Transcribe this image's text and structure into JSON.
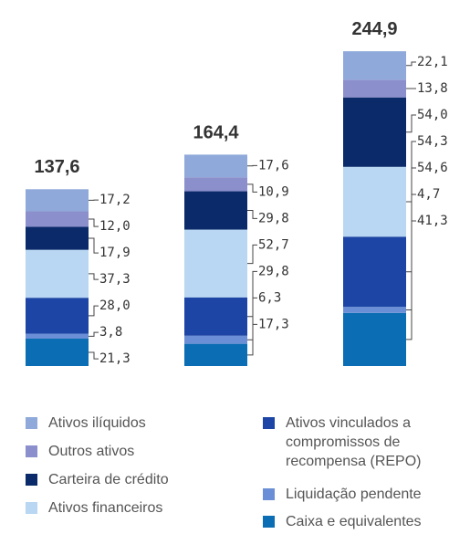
{
  "chart_data": {
    "type": "stacked_bar",
    "totals": [
      137.6,
      164.4,
      244.9
    ],
    "total_labels": [
      "137,6",
      "164,4",
      "244,9"
    ],
    "ylim": [
      0,
      244.9
    ],
    "series": [
      {
        "name": "Ativos ilíquidos",
        "color": "#8fa9da",
        "values": [
          17.2,
          17.6,
          22.1
        ],
        "value_labels": [
          "17,2",
          "17,6",
          "22,1"
        ]
      },
      {
        "name": "Outros ativos",
        "color": "#8b8fcc",
        "values": [
          12.0,
          10.9,
          13.8
        ],
        "value_labels": [
          "12,0",
          "10,9",
          "13,8"
        ]
      },
      {
        "name": "Carteira de crédito",
        "color": "#0b2a69",
        "values": [
          17.9,
          29.8,
          54.0
        ],
        "value_labels": [
          "17,9",
          "29,8",
          "54,0"
        ]
      },
      {
        "name": "Ativos financeiros",
        "color": "#b9d7f2",
        "values": [
          37.3,
          52.7,
          54.3
        ],
        "value_labels": [
          "37,3",
          "52,7",
          "54,3"
        ]
      },
      {
        "name": "Ativos vinculados a compromissos de recompensa (REPO)",
        "color": "#1c45a5",
        "values": [
          28.0,
          29.8,
          54.6
        ],
        "value_labels": [
          "28,0",
          "29,8",
          "54,6"
        ]
      },
      {
        "name": "Liquidação pendente",
        "color": "#6b8fd6",
        "values": [
          3.8,
          6.3,
          4.7
        ],
        "value_labels": [
          "3,8",
          "6,3",
          "4,7"
        ]
      },
      {
        "name": "Caixa e equivalentes",
        "color": "#0b6db3",
        "values": [
          21.3,
          17.3,
          41.3
        ],
        "value_labels": [
          "21,3",
          "17,3",
          "41,3"
        ]
      }
    ]
  }
}
